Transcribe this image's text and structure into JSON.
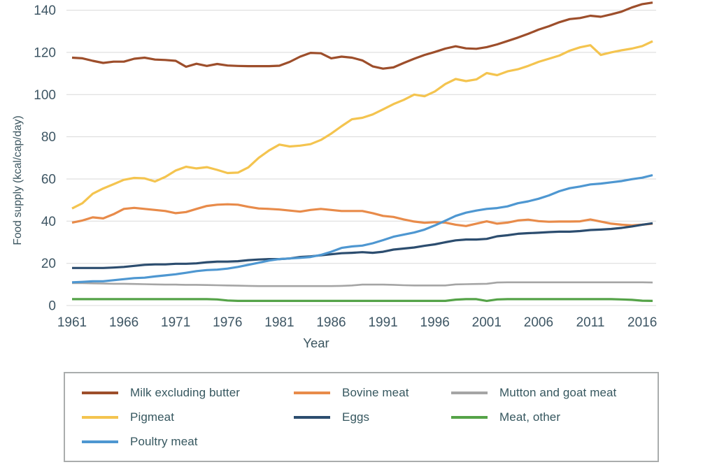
{
  "chart_data": {
    "type": "line",
    "title": "",
    "xlabel": "Year",
    "ylabel": "Food supply (kcal/cap/day)",
    "x_ticks": [
      1961,
      1966,
      1971,
      1976,
      1981,
      1986,
      1991,
      1996,
      2001,
      2006,
      2011,
      2016
    ],
    "y_ticks": [
      0,
      20,
      40,
      60,
      80,
      100,
      120,
      140
    ],
    "ylim": [
      0,
      145
    ],
    "grid": "horizontal",
    "years": {
      "start": 1961,
      "end": 2017,
      "step": 1
    },
    "legend": {
      "position": "bottom-boxed",
      "columns": [
        [
          0,
          1,
          2
        ],
        [
          3,
          4
        ],
        [
          5,
          6
        ]
      ]
    },
    "series": [
      {
        "name": "Milk excluding butter",
        "color": "#9d4e2b",
        "values": [
          117.5,
          117.2,
          116,
          115,
          115.6,
          115.6,
          117,
          117.5,
          116.6,
          116.4,
          116,
          113.2,
          114.6,
          113.6,
          114.5,
          113.8,
          113.6,
          113.5,
          113.5,
          113.5,
          113.7,
          115.5,
          118,
          119.8,
          119.6,
          117.2,
          118,
          117.5,
          116.2,
          113.4,
          112.3,
          112.9,
          115,
          117,
          118.8,
          120.2,
          121.8,
          122.9,
          121.9,
          121.7,
          122.5,
          123.8,
          125.4,
          127,
          128.8,
          130.8,
          132.4,
          134.3,
          135.8,
          136.3,
          137.4,
          136.9,
          138,
          139.3,
          141.3,
          142.9,
          143.6
        ]
      },
      {
        "name": "Pigmeat",
        "color": "#f4c44f",
        "values": [
          46,
          48.5,
          53,
          55.5,
          57.5,
          59.6,
          60.5,
          60.3,
          58.8,
          61,
          64,
          65.8,
          65,
          65.6,
          64.3,
          62.8,
          63,
          65.5,
          70,
          73.5,
          76.3,
          75.4,
          75.8,
          76.5,
          78.5,
          81.5,
          85,
          88.3,
          89,
          90.6,
          93,
          95.5,
          97.5,
          100,
          99.2,
          101.5,
          105,
          107.4,
          106.4,
          107.2,
          110.2,
          109.2,
          111,
          112,
          113.6,
          115.5,
          117,
          118.5,
          120.8,
          122.4,
          123.4,
          118.8,
          120,
          121,
          121.8,
          123,
          125.3
        ]
      },
      {
        "name": "Poultry meat",
        "color": "#4e97d1",
        "values": [
          11,
          11.2,
          11.5,
          11.5,
          12,
          12.5,
          13,
          13.2,
          13.8,
          14.3,
          14.8,
          15.5,
          16.3,
          16.8,
          17,
          17.5,
          18.3,
          19.3,
          20.3,
          21.3,
          22,
          22.3,
          22.6,
          23,
          24,
          25.5,
          27.3,
          28,
          28.4,
          29.5,
          31,
          32.6,
          33.6,
          34.6,
          36,
          38,
          40.2,
          42.5,
          44,
          45,
          45.8,
          46.2,
          47,
          48.5,
          49.4,
          50.6,
          52.2,
          54.2,
          55.6,
          56.4,
          57.4,
          57.8,
          58.4,
          59,
          59.9,
          60.6,
          61.8
        ]
      },
      {
        "name": "Bovine meat",
        "color": "#e88b4a",
        "values": [
          39.3,
          40.3,
          41.8,
          41.3,
          43.3,
          45.8,
          46.3,
          45.8,
          45.3,
          44.8,
          43.8,
          44.3,
          45.8,
          47.2,
          47.8,
          48,
          47.8,
          46.8,
          46,
          45.8,
          45.5,
          45,
          44.5,
          45.3,
          45.8,
          45.3,
          44.8,
          44.8,
          44.8,
          43.8,
          42.5,
          42,
          40.8,
          39.8,
          39.2,
          39.5,
          39.3,
          38.3,
          37.7,
          38.8,
          39.9,
          38.8,
          39.3,
          40.3,
          40.7,
          40,
          39.7,
          39.8,
          39.8,
          39.9,
          40.8,
          39.8,
          38.8,
          38.3,
          38,
          38.3,
          38.8
        ]
      },
      {
        "name": "Eggs",
        "color": "#2c4d6f",
        "values": [
          17.8,
          17.8,
          17.8,
          17.8,
          18,
          18.3,
          18.8,
          19.3,
          19.5,
          19.5,
          19.8,
          19.8,
          20,
          20.5,
          20.8,
          20.8,
          21,
          21.5,
          21.8,
          22,
          22,
          22.3,
          23,
          23.3,
          23.8,
          24.3,
          24.8,
          25,
          25.3,
          25,
          25.5,
          26.5,
          27,
          27.5,
          28.3,
          29,
          30,
          30.9,
          31.3,
          31.3,
          31.6,
          32.8,
          33.3,
          34,
          34.3,
          34.5,
          34.8,
          35,
          35,
          35.3,
          35.8,
          36,
          36.3,
          36.8,
          37.5,
          38.3,
          39
        ]
      },
      {
        "name": "Mutton and goat meat",
        "color": "#a5a5a5",
        "values": [
          10.6,
          10.6,
          10.5,
          10.4,
          10.3,
          10.3,
          10.2,
          10.1,
          10,
          9.9,
          9.9,
          9.8,
          9.8,
          9.7,
          9.6,
          9.5,
          9.4,
          9.3,
          9.2,
          9.2,
          9.2,
          9.2,
          9.2,
          9.2,
          9.2,
          9.2,
          9.3,
          9.5,
          9.9,
          9.9,
          9.9,
          9.8,
          9.6,
          9.5,
          9.5,
          9.5,
          9.5,
          10,
          10.1,
          10.2,
          10.3,
          10.9,
          11,
          11,
          11,
          11,
          11,
          11,
          11,
          11,
          11,
          11,
          11,
          11,
          11,
          11,
          10.9
        ]
      },
      {
        "name": "Meat, other",
        "color": "#55a348",
        "values": [
          3,
          3,
          3,
          3,
          3,
          3,
          3,
          3,
          3,
          3,
          3,
          3,
          3,
          3,
          2.9,
          2.4,
          2.2,
          2.2,
          2.2,
          2.2,
          2.2,
          2.2,
          2.2,
          2.2,
          2.2,
          2.2,
          2.2,
          2.2,
          2.2,
          2.2,
          2.2,
          2.2,
          2.2,
          2.2,
          2.2,
          2.2,
          2.2,
          2.8,
          3,
          3,
          2.2,
          2.9,
          3,
          3,
          3,
          3,
          3,
          3,
          3,
          3,
          3,
          3,
          3,
          2.9,
          2.7,
          2.3,
          2.2
        ]
      }
    ]
  }
}
